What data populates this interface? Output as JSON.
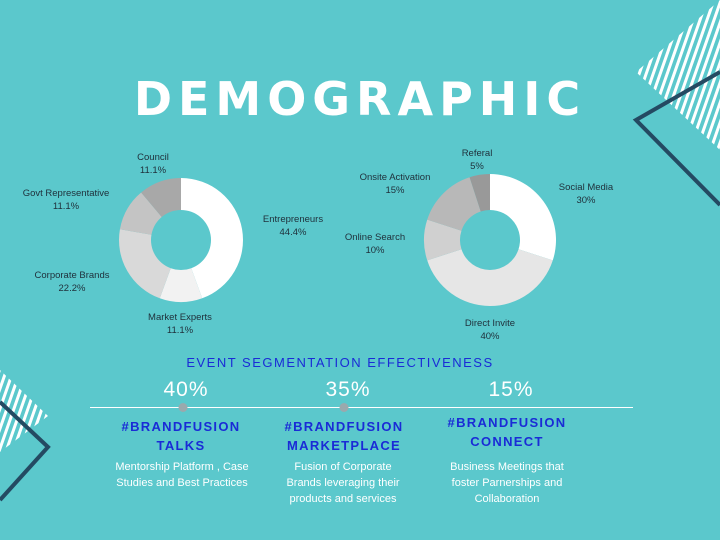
{
  "title": "DEMOGRAPHIC",
  "colors": {
    "background": "#5bc8cc",
    "white": "#ffffff",
    "heading_blue": "#1a2bd6",
    "navy": "#244a62"
  },
  "chart_data": [
    {
      "type": "pie",
      "style": "donut",
      "slices": [
        {
          "label": "Entrepreneurs",
          "value_text": "44.4%",
          "value": 44.4,
          "color": "#ffffff"
        },
        {
          "label": "Market Experts",
          "value_text": "11.1%",
          "value": 11.1,
          "color": "#f2f2f2"
        },
        {
          "label": "Corporate Brands",
          "value_text": "22.2%",
          "value": 22.2,
          "color": "#d9d9d9"
        },
        {
          "label": "Govt Representative",
          "value_text": "11.1%",
          "value": 11.1,
          "color": "#c4c4c4"
        },
        {
          "label": "Council",
          "value_text": "11.1%",
          "value": 11.1,
          "color": "#a8a8a8"
        }
      ]
    },
    {
      "type": "pie",
      "style": "donut",
      "slices": [
        {
          "label": "Social Media",
          "value_text": "30%",
          "value": 30,
          "color": "#ffffff"
        },
        {
          "label": "Direct Invite",
          "value_text": "40%",
          "value": 40,
          "color": "#e6e6e6"
        },
        {
          "label": "Online Search",
          "value_text": "10%",
          "value": 10,
          "color": "#d0d0d0"
        },
        {
          "label": "Onsite Activation",
          "value_text": "15%",
          "value": 15,
          "color": "#b8b8b8"
        },
        {
          "label": "Referal",
          "value_text": "5%",
          "value": 5,
          "color": "#999999"
        }
      ]
    }
  ],
  "segmentation": {
    "title": "EVENT SEGMENTATION EFFECTIVENESS",
    "events": [
      {
        "percent": "40%",
        "name_line1": "#BRANDFUSION",
        "name_line2": "TALKS",
        "description": "Mentorship Platform , Case Studies and Best Practices"
      },
      {
        "percent": "35%",
        "name_line1": "#BRANDFUSION",
        "name_line2": "MARKETPLACE",
        "description": "Fusion of Corporate Brands  leveraging their products and services"
      },
      {
        "percent": "15%",
        "name_line1": "#BRANDFUSION",
        "name_line2": "CONNECT",
        "description": "Business Meetings that foster Parnerships and Collaboration"
      }
    ]
  }
}
